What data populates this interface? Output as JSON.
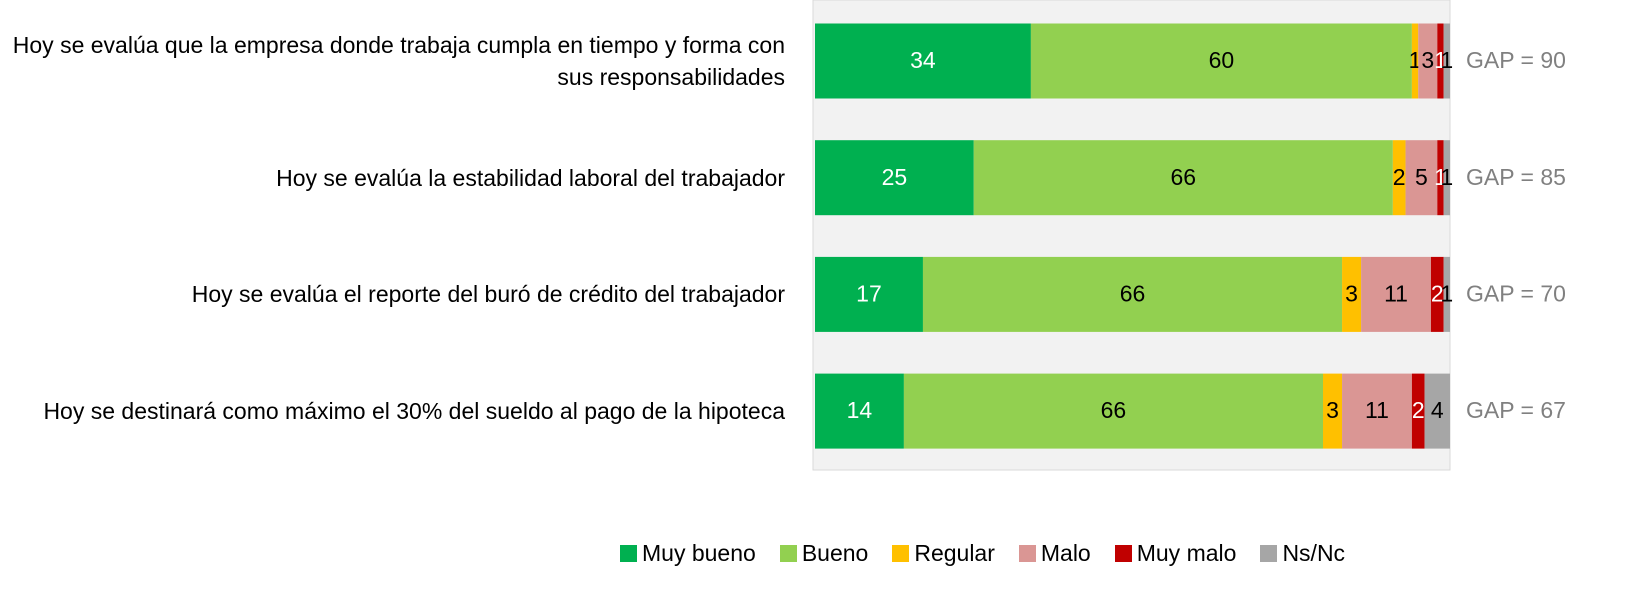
{
  "chart_data": {
    "type": "stacked_barh",
    "categories": [
      "Hoy se evalúa que la empresa donde trabaja cumpla en tiempo y forma con sus responsabilidades",
      "Hoy se evalúa la estabilidad laboral del trabajador",
      "Hoy se evalúa el reporte del buró de crédito del trabajador",
      "Hoy se destinará como máximo el 30% del sueldo al pago de la hipoteca"
    ],
    "series": [
      {
        "name": "Muy bueno",
        "color": "#00b050",
        "label_color": "#ffffff",
        "values": [
          34,
          25,
          17,
          14
        ]
      },
      {
        "name": "Bueno",
        "color": "#92d050",
        "label_color": "#000000",
        "values": [
          60,
          66,
          66,
          66
        ]
      },
      {
        "name": "Regular",
        "color": "#ffc000",
        "label_color": "#000000",
        "values": [
          1,
          2,
          3,
          3
        ]
      },
      {
        "name": "Malo",
        "color": "#da9694",
        "label_color": "#000000",
        "values": [
          3,
          5,
          11,
          11
        ]
      },
      {
        "name": "Muy malo",
        "color": "#c00000",
        "label_color": "#ffffff",
        "values": [
          1,
          1,
          2,
          2
        ]
      },
      {
        "name": "Ns/Nc",
        "color": "#a6a6a6",
        "label_color": "#000000",
        "values": [
          1,
          1,
          1,
          4
        ]
      }
    ],
    "annotations": [
      "GAP = 90",
      "GAP = 85",
      "GAP = 70",
      "GAP = 67"
    ],
    "xlim": [
      0,
      100
    ],
    "legend": "bottom"
  }
}
